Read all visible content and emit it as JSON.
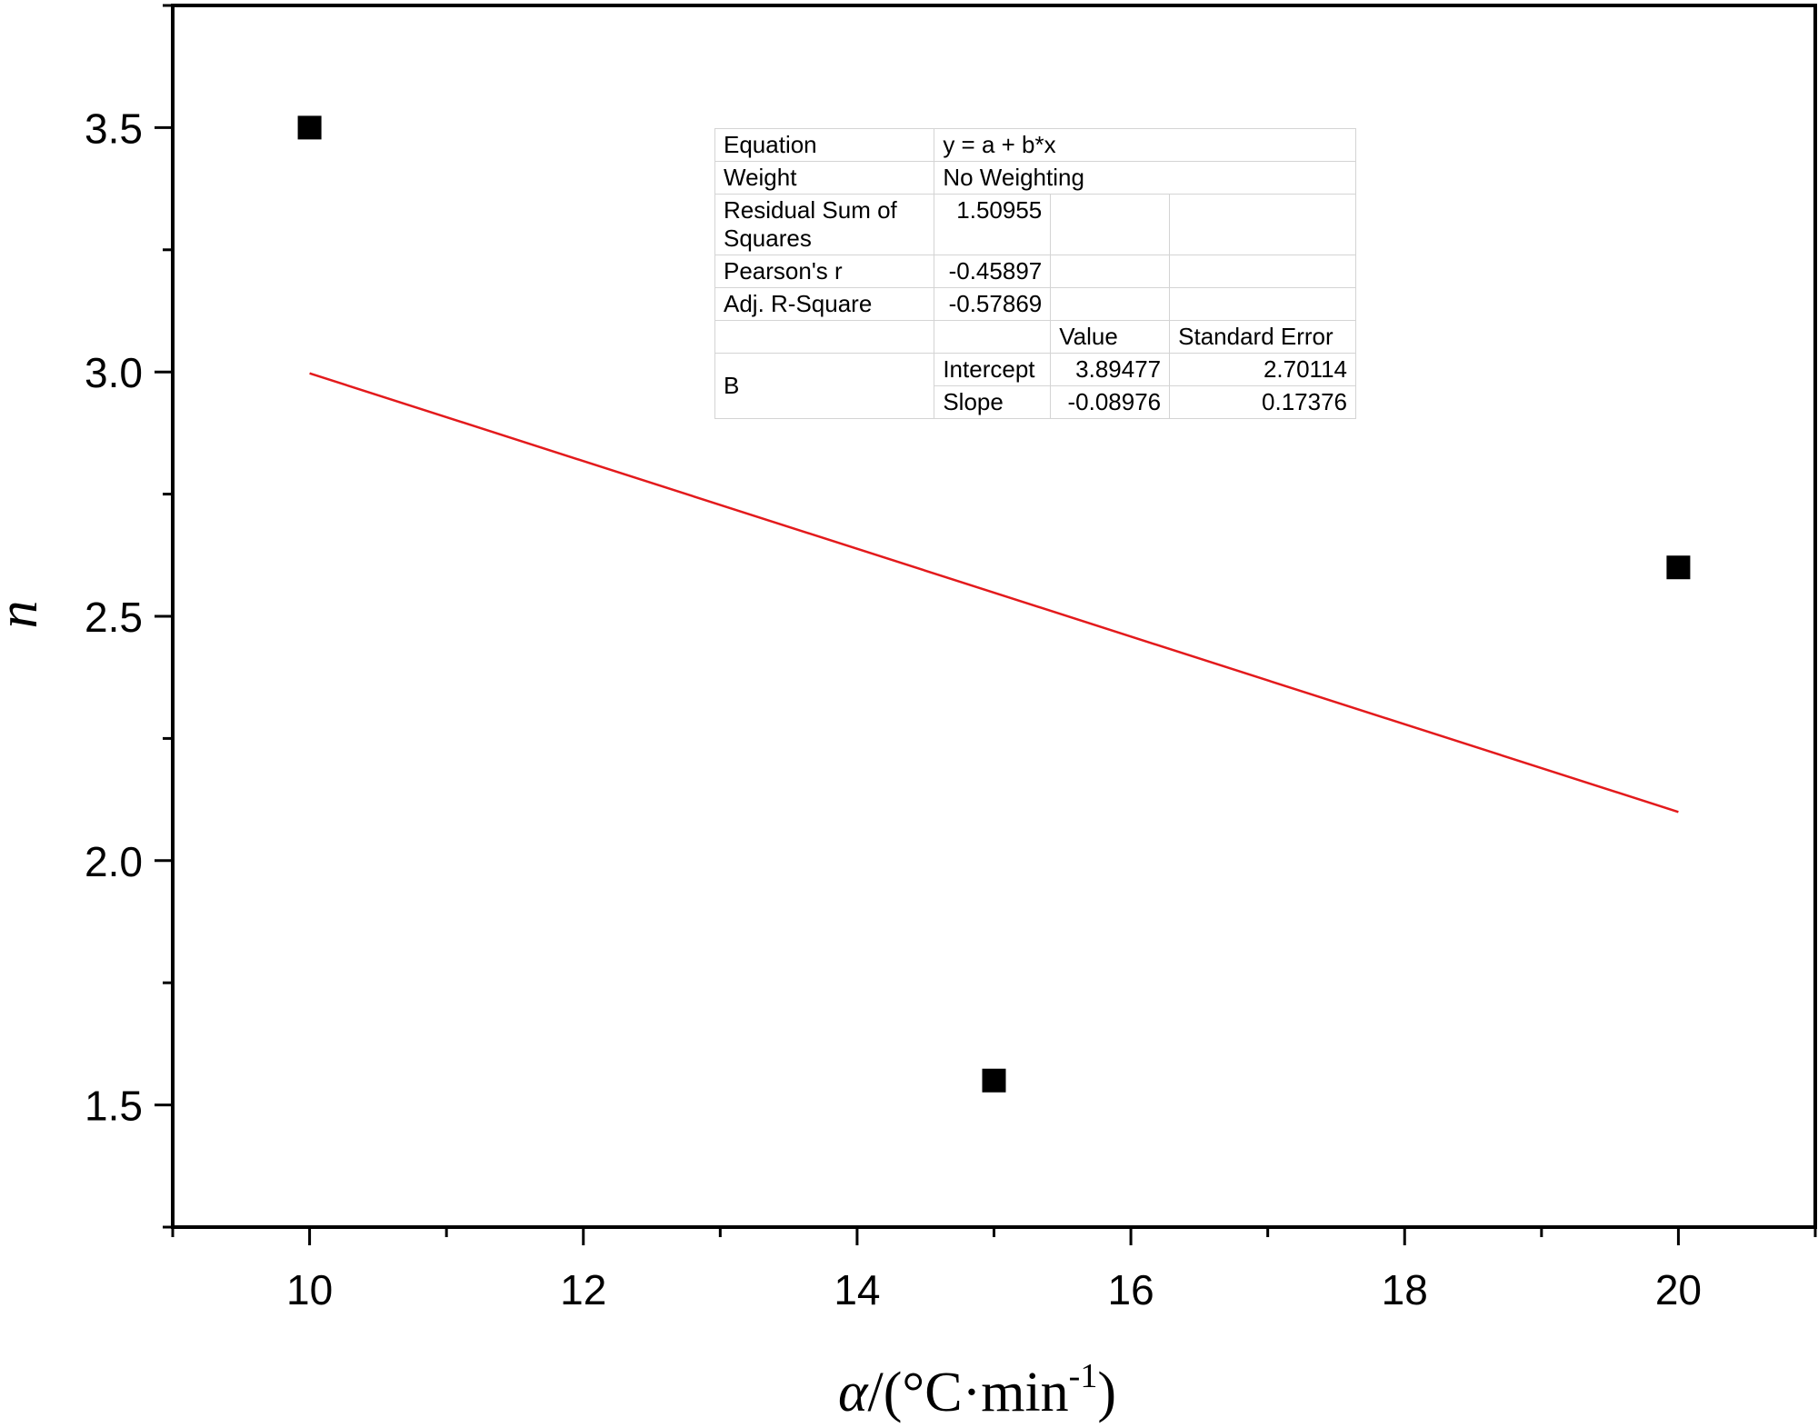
{
  "chart_data": {
    "type": "scatter",
    "title": "",
    "xlabel": "α/(°C·min⁻¹)",
    "ylabel": "n",
    "xlim": [
      9,
      21
    ],
    "ylim": [
      1.25,
      3.75
    ],
    "x_ticks": [
      "10",
      "12",
      "14",
      "16",
      "18",
      "20"
    ],
    "y_ticks": [
      "1.5",
      "2.0",
      "2.5",
      "3.0",
      "3.5"
    ],
    "grid": false,
    "series": [
      {
        "values": [
          {
            "x": 10,
            "y": 3.5
          },
          {
            "x": 15,
            "y": 1.55
          },
          {
            "x": 20,
            "y": 2.6
          }
        ],
        "marker": "square",
        "color": "#000000"
      }
    ],
    "fit_line": {
      "intercept": 3.89477,
      "slope": -0.08976,
      "x_range": [
        10,
        20
      ],
      "color": "#e31a1c"
    }
  },
  "fit_table": {
    "equation_label": "Equation",
    "equation_value": "y = a + b*x",
    "weight_label": "Weight",
    "weight_value": "No Weighting",
    "rss_label": "Residual Sum of Squares",
    "rss_value": "1.50955",
    "pearson_label": "Pearson's r",
    "pearson_value": "-0.45897",
    "adj_r2_label": "Adj. R-Square",
    "adj_r2_value": "-0.57869",
    "value_header": "Value",
    "std_error_header": "Standard Error",
    "group_label": "B",
    "intercept_label": "Intercept",
    "intercept_value": "3.89477",
    "intercept_error": "2.70114",
    "slope_label": "Slope",
    "slope_value": "-0.08976",
    "slope_error": "0.17376"
  }
}
